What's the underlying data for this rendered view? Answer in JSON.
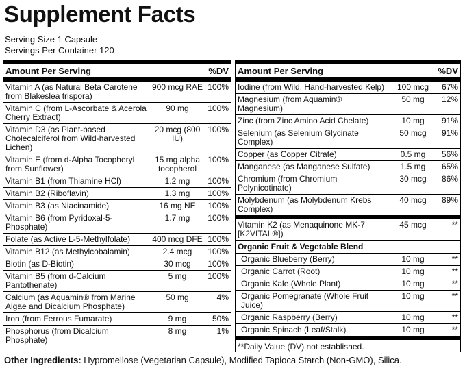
{
  "title": "Supplement Facts",
  "serving_size": "Serving Size 1 Capsule",
  "servings_per_container": "Servings Per Container 120",
  "left": {
    "header": [
      "Amount Per Serving",
      "%DV"
    ],
    "rows": [
      [
        "Vitamin A (as Natural Beta Carotene from Blakeslea trispora)",
        "900 mcg RAE",
        "100%"
      ],
      [
        "Vitamin C (from L-Ascorbate & Acerola Cherry Extract)",
        "90 mg",
        "100%"
      ],
      [
        "Vitamin D3 (as Plant-based Cholecalciferol from Wild-harvested Lichen)",
        "20 mcg (800 IU)",
        "100%"
      ],
      [
        "Vitamin E (from d-Alpha Tocopheryl from Sunflower)",
        "15 mg alpha tocopherol",
        "100%"
      ],
      [
        "Vitamin B1 (from Thiamine HCl)",
        "1.2 mg",
        "100%"
      ],
      [
        "Vitamin B2 (Riboflavin)",
        "1.3 mg",
        "100%"
      ],
      [
        "Vitamin B3 (as Niacinamide)",
        "16 mg NE",
        "100%"
      ],
      [
        "Vitamin B6 (from Pyridoxal-5-Phosphate)",
        "1.7 mg",
        "100%"
      ],
      [
        "Folate (as Active L-5-Methylfolate)",
        "400 mcg DFE",
        "100%"
      ],
      [
        "Vitamin B12 (as Methylcobalamin)",
        "2.4 mcg",
        "100%"
      ],
      [
        "Biotin (as D-Biotin)",
        "30 mcg",
        "100%"
      ],
      [
        "Vitamin B5 (from d-Calcium Pantothenate)",
        "5 mg",
        "100%"
      ],
      [
        "Calcium (as Aquamin® from Marine Algae and Dicalcium Phosphate)",
        "50 mg",
        "4%"
      ],
      [
        "Iron (from Ferrous Fumarate)",
        "9 mg",
        "50%"
      ],
      [
        "Phosphorus (from Dicalcium Phosphate)",
        "8 mg",
        "1%"
      ]
    ]
  },
  "right": {
    "header": [
      "Amount Per Serving",
      "%DV"
    ],
    "rows": [
      [
        "Iodine (from Wild, Hand-harvested Kelp)",
        "100 mcg",
        "67%"
      ],
      [
        "Magnesium (from Aquamin® Magnesium)",
        "50 mg",
        "12%"
      ],
      [
        "Zinc (from Zinc Amino Acid Chelate)",
        "10 mg",
        "91%"
      ],
      [
        "Selenium (as Selenium Glycinate Complex)",
        "50 mcg",
        "91%"
      ],
      [
        "Copper (as Copper Citrate)",
        "0.5 mg",
        "56%"
      ],
      [
        "Manganese (as Manganese Sulfate)",
        "1.5 mg",
        "65%"
      ],
      [
        "Chromium (from Chromium Polynicotinate)",
        "30 mcg",
        "86%"
      ],
      [
        "Molybdenum (as Molybdenum Krebs Complex)",
        "40 mcg",
        "89%"
      ]
    ],
    "vitamin_k2": [
      "Vitamin K2 (as Menaquinone MK-7 [K2VITAL®])",
      "45 mcg",
      "**"
    ],
    "blend": {
      "title": "Organic Fruit & Vegetable Blend",
      "rows": [
        [
          "Organic Blueberry (Berry)",
          "10 mg",
          "**"
        ],
        [
          "Organic Carrot (Root)",
          "10 mg",
          "**"
        ],
        [
          "Organic Kale (Whole Plant)",
          "10 mg",
          "**"
        ],
        [
          "Organic Pomegranate (Whole Fruit Juice)",
          "10 mg",
          "**"
        ],
        [
          "Organic Raspberry (Berry)",
          "10 mg",
          "**"
        ],
        [
          "Organic Spinach (Leaf/Stalk)",
          "10 mg",
          "**"
        ]
      ]
    },
    "footnote": "**Daily Value (DV) not established."
  },
  "other_ingredients": {
    "label": "Other Ingredients:",
    "text": " Hypromellose (Vegetarian Capsule), Modified Tapioca Starch (Non-GMO), Silica."
  }
}
